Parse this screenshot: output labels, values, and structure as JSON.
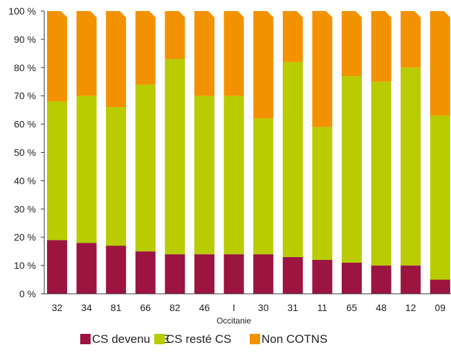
{
  "chart_data": {
    "type": "bar",
    "stacked": true,
    "title": "",
    "xlabel": "",
    "ylabel": "",
    "categories": [
      "32",
      "34",
      "81",
      "66",
      "82",
      "46",
      "I",
      "30",
      "31",
      "11",
      "65",
      "48",
      "12",
      "09"
    ],
    "category_sublabels": {
      "I": "Occitanie"
    },
    "ylim": [
      0,
      100
    ],
    "yticks": [
      0,
      10,
      20,
      30,
      40,
      50,
      60,
      70,
      80,
      90,
      100
    ],
    "ytick_labels": [
      "0 %",
      "10 %",
      "20 %",
      "30 %",
      "40 %",
      "50 %",
      "60 %",
      "70 %",
      "80 %",
      "90 %",
      "100 %"
    ],
    "grid": false,
    "legend_position": "bottom",
    "series": [
      {
        "name": "CS devenu CE",
        "color": "#9b1540",
        "values": [
          19,
          18,
          17,
          15,
          14,
          14,
          14,
          14,
          13,
          12,
          11,
          10,
          10,
          5
        ]
      },
      {
        "name": "CS resté CS",
        "color": "#b8cc00",
        "values": [
          49,
          52,
          49,
          59,
          69,
          56,
          56,
          48,
          69,
          47,
          66,
          65,
          70,
          58
        ]
      },
      {
        "name": "Non COTNS",
        "color": "#f39200",
        "values": [
          32,
          30,
          34,
          26,
          17,
          30,
          30,
          38,
          18,
          41,
          23,
          25,
          20,
          37
        ]
      }
    ]
  }
}
